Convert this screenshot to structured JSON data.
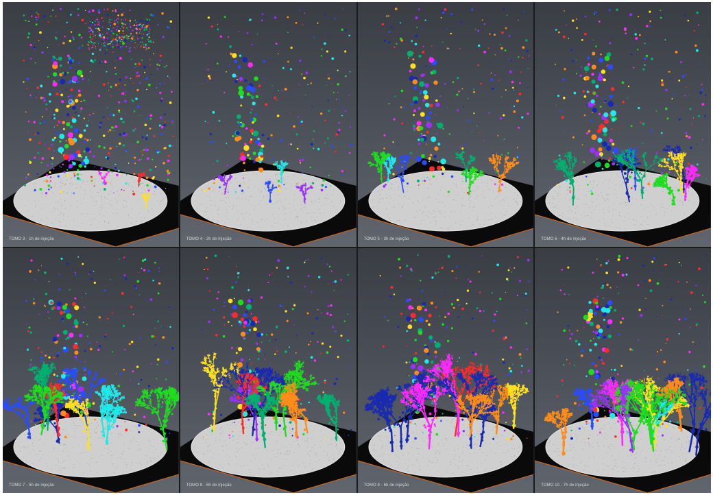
{
  "panels": [
    {
      "label": "TOMO 3 - 1h de injeção",
      "growth": 0.05
    },
    {
      "label": "TOMO 4 - 2h de injeção",
      "growth": 0.12
    },
    {
      "label": "TOMO 5 - 3h de injeção",
      "growth": 0.35
    },
    {
      "label": "TOMO 6 - 4h de injeção",
      "growth": 0.55
    },
    {
      "label": "TOMO 7 - 5h de injeção",
      "growth": 0.75
    },
    {
      "label": "TOMO 8 - 5h de injeção",
      "growth": 0.8
    },
    {
      "label": "TOMO 9 - 6h de injeção",
      "growth": 0.9
    },
    {
      "label": "TOMO 10 - 7h de injeção",
      "growth": 1.0
    }
  ],
  "colors": {
    "palette": [
      "#ff2a2a",
      "#2a4cff",
      "#1fdc1f",
      "#22e8e8",
      "#ff2aff",
      "#ffe020",
      "#ff8c1a",
      "#1a2ab0",
      "#9b30ff",
      "#00b070"
    ],
    "disk": "#cfcfcf",
    "base": "#0a0a0a",
    "base_edge": "#c8641e"
  }
}
